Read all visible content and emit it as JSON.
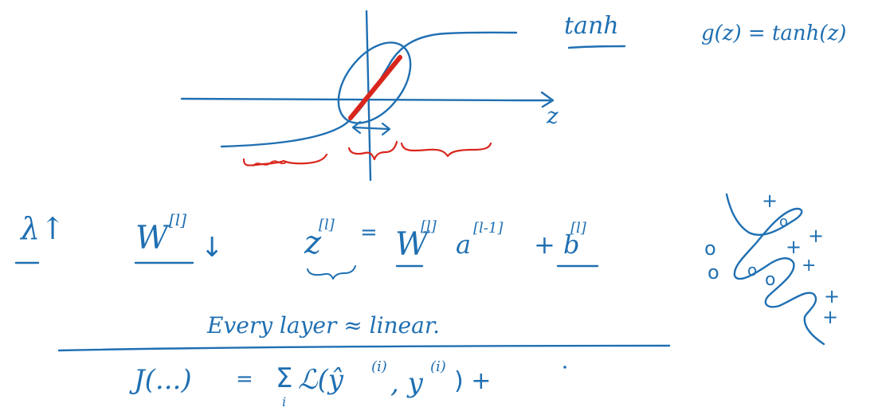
{
  "colors": {
    "ink_blue": "#1f6fb2",
    "ink_red": "#d9261c",
    "background": "#ffffff"
  },
  "graph": {
    "axis_label_z": "z",
    "curve": "tanh"
  },
  "notes": {
    "tanh_label": "tanh",
    "g_definition": "g(z) = tanh(z)",
    "lambda_up": "λ↑",
    "w_down_base": "W",
    "w_down_sup": "[l]",
    "w_down_arrow": "↓",
    "z_lhs": "z",
    "z_lhs_sup": "[l]",
    "equals": "=",
    "w_rhs": "W",
    "w_rhs_sup": "[l]",
    "a_rhs": "a",
    "a_rhs_sup": "[l-1]",
    "plus_b": "+ b",
    "b_sup": "[l]",
    "every_layer": "Every layer ≈ linear.",
    "cost_lhs": "J(...)",
    "cost_equals": "=",
    "cost_sum": "Σ",
    "cost_sum_index": "i",
    "cost_loss": "ℒ(ŷ",
    "cost_loss_sup": "(i)",
    "cost_y": ", y",
    "cost_y_sup": "(i)",
    "cost_close_plus": ") +"
  },
  "scatter": {
    "x_marks": [
      "+",
      "+",
      "+",
      "+",
      "+",
      "+"
    ],
    "o_marks": [
      "o",
      "o",
      "o",
      "o"
    ]
  }
}
